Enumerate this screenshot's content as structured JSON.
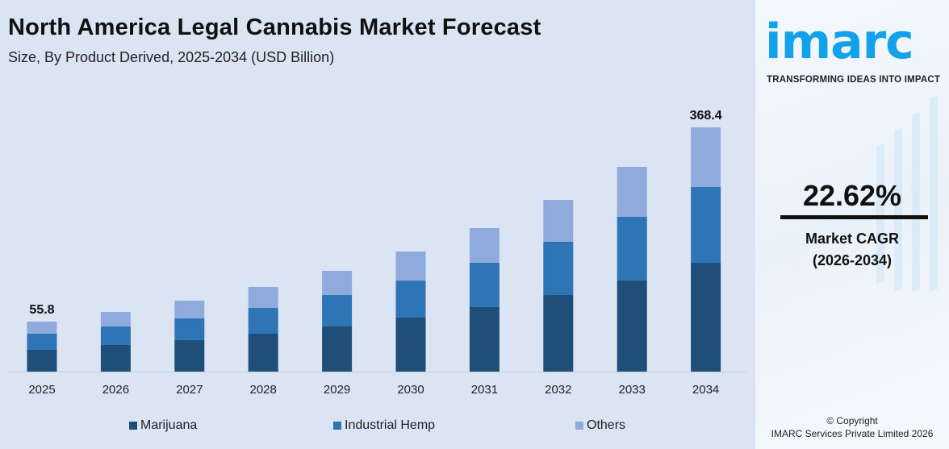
{
  "header": {
    "title": "North America Legal Cannabis Market Forecast",
    "subtitle": "Size, By Product Derived, 2025-2034 (USD Billion)"
  },
  "chart_data": {
    "type": "bar",
    "stacked": true,
    "title": "North America Legal Cannabis Market Forecast",
    "subtitle": "Size, By Product Derived, 2025-2034 (USD Billion)",
    "categories": [
      "2025",
      "2026",
      "2027",
      "2028",
      "2029",
      "2030",
      "2031",
      "2032",
      "2033",
      "2034"
    ],
    "series": [
      {
        "name": "Marijuana",
        "color": "#1f4e79",
        "values": [
          24.3,
          31.8,
          39.7,
          49.9,
          61.6,
          75.8,
          92.7,
          112.2,
          135.6,
          164.1
        ]
      },
      {
        "name": "Industrial Hemp",
        "color": "#2e75b6",
        "values": [
          18.0,
          22.2,
          27.5,
          34.0,
          42.9,
          52.0,
          63.7,
          78.0,
          94.8,
          114.3
        ]
      },
      {
        "name": "Others",
        "color": "#8faadc",
        "values": [
          13.5,
          17.3,
          22.4,
          27.6,
          33.0,
          40.7,
          49.8,
          61.4,
          74.4,
          90.0
        ]
      }
    ],
    "data_labels": [
      {
        "category": "2025",
        "text": "55.8"
      },
      {
        "category": "2034",
        "text": "368.4"
      }
    ],
    "legend": "bottom",
    "grid": false,
    "xlabel": "",
    "ylabel": ""
  },
  "sidebar": {
    "logo": "imarc",
    "tagline": "TRANSFORMING IDEAS INTO IMPACT",
    "cagr_value": "22.62%",
    "cagr_label": "Market CAGR",
    "cagr_period": "(2026-2034)",
    "copyright": "© Copyright",
    "company": "IMARC Services Private Limited 2026",
    "logo_color": "#12a2ec"
  }
}
